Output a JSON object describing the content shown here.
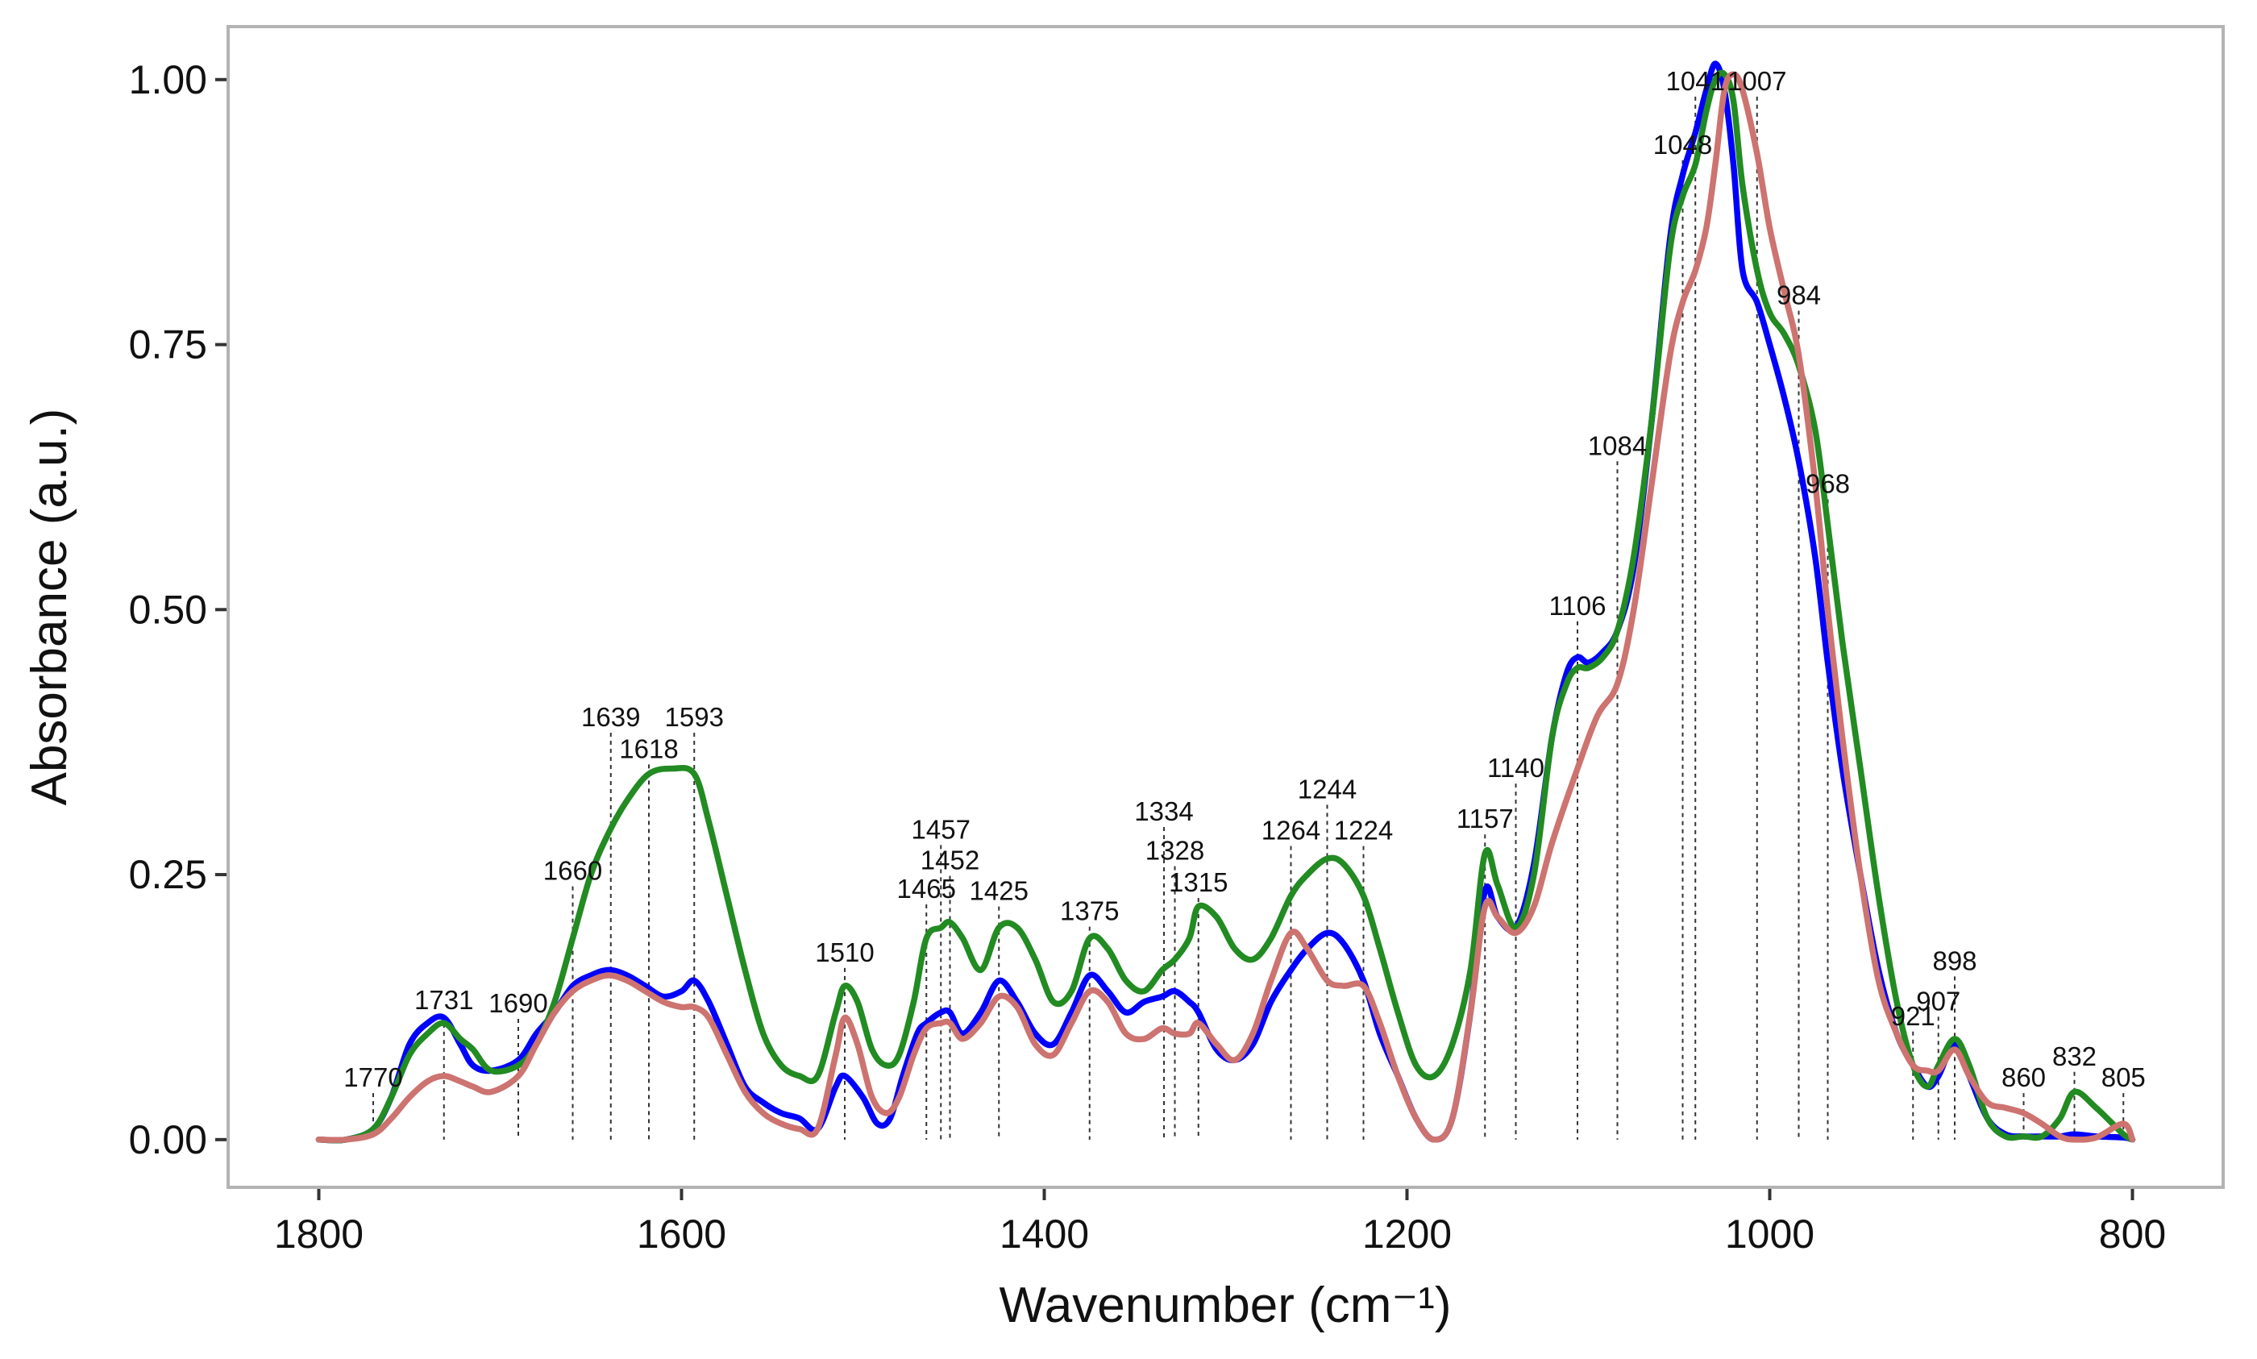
{
  "chart_data": {
    "type": "line",
    "xlabel": "Wavenumber (cm⁻¹)",
    "ylabel": "Absorbance (a.u.)",
    "xlim": [
      1850,
      750
    ],
    "ylim": [
      -0.045,
      1.05
    ],
    "x_reversed": true,
    "grid": false,
    "legend": "none",
    "x_ticks": [
      1800,
      1600,
      1400,
      1200,
      1000,
      800
    ],
    "x_tick_labels": [
      "1800",
      "1600",
      "1400",
      "1200",
      "1000",
      "800"
    ],
    "y_ticks": [
      0.0,
      0.25,
      0.5,
      0.75,
      1.0
    ],
    "y_tick_labels": [
      "0.00",
      "0.25",
      "0.50",
      "0.75",
      "1.00"
    ],
    "series": [
      {
        "color": "#0000ff",
        "x": [
          1800,
          1785,
          1770,
          1760,
          1750,
          1740,
          1731,
          1722,
          1715,
          1705,
          1690,
          1680,
          1670,
          1660,
          1650,
          1640,
          1630,
          1620,
          1610,
          1600,
          1593,
          1585,
          1575,
          1565,
          1555,
          1545,
          1535,
          1525,
          1515,
          1510,
          1500,
          1492,
          1485,
          1478,
          1470,
          1465,
          1457,
          1452,
          1445,
          1435,
          1425,
          1415,
          1405,
          1395,
          1385,
          1375,
          1365,
          1355,
          1345,
          1335,
          1328,
          1320,
          1315,
          1305,
          1295,
          1285,
          1275,
          1264,
          1255,
          1244,
          1235,
          1224,
          1215,
          1205,
          1195,
          1185,
          1175,
          1165,
          1157,
          1150,
          1140,
          1130,
          1120,
          1112,
          1106,
          1100,
          1092,
          1084,
          1075,
          1065,
          1055,
          1048,
          1041,
          1035,
          1030,
          1025,
          1020,
          1015,
          1007,
          1000,
          992,
          984,
          975,
          968,
          960,
          950,
          940,
          930,
          921,
          913,
          907,
          898,
          890,
          880,
          870,
          860,
          850,
          840,
          832,
          820,
          805,
          800
        ],
        "y": [
          0.0,
          0.0,
          0.01,
          0.04,
          0.09,
          0.11,
          0.115,
          0.09,
          0.07,
          0.065,
          0.075,
          0.1,
          0.12,
          0.145,
          0.155,
          0.16,
          0.155,
          0.145,
          0.135,
          0.14,
          0.15,
          0.13,
          0.09,
          0.05,
          0.035,
          0.025,
          0.02,
          0.01,
          0.05,
          0.06,
          0.04,
          0.015,
          0.02,
          0.06,
          0.1,
          0.11,
          0.12,
          0.12,
          0.1,
          0.12,
          0.15,
          0.13,
          0.1,
          0.09,
          0.12,
          0.155,
          0.14,
          0.12,
          0.13,
          0.135,
          0.14,
          0.13,
          0.12,
          0.085,
          0.075,
          0.09,
          0.13,
          0.16,
          0.18,
          0.195,
          0.185,
          0.15,
          0.1,
          0.06,
          0.02,
          0.0,
          0.02,
          0.12,
          0.235,
          0.21,
          0.2,
          0.26,
          0.38,
          0.44,
          0.455,
          0.45,
          0.46,
          0.48,
          0.54,
          0.68,
          0.85,
          0.91,
          0.95,
          0.99,
          1.015,
          0.99,
          0.92,
          0.82,
          0.79,
          0.75,
          0.7,
          0.64,
          0.55,
          0.45,
          0.35,
          0.25,
          0.16,
          0.1,
          0.07,
          0.05,
          0.06,
          0.09,
          0.06,
          0.02,
          0.005,
          0.003,
          0.003,
          0.003,
          0.005,
          0.003,
          0.002,
          0.0
        ]
      },
      {
        "color": "#228b22",
        "x": [
          1800,
          1785,
          1770,
          1760,
          1750,
          1740,
          1731,
          1722,
          1715,
          1705,
          1690,
          1680,
          1670,
          1660,
          1650,
          1640,
          1630,
          1618,
          1605,
          1593,
          1585,
          1575,
          1565,
          1555,
          1545,
          1535,
          1525,
          1515,
          1510,
          1503,
          1495,
          1487,
          1480,
          1472,
          1465,
          1457,
          1452,
          1445,
          1435,
          1425,
          1415,
          1405,
          1395,
          1385,
          1375,
          1365,
          1355,
          1345,
          1335,
          1328,
          1320,
          1315,
          1305,
          1295,
          1285,
          1275,
          1264,
          1255,
          1244,
          1235,
          1224,
          1215,
          1205,
          1195,
          1185,
          1175,
          1165,
          1157,
          1150,
          1140,
          1130,
          1120,
          1112,
          1106,
          1100,
          1092,
          1084,
          1075,
          1065,
          1055,
          1048,
          1041,
          1035,
          1030,
          1025,
          1020,
          1015,
          1007,
          1000,
          992,
          984,
          975,
          968,
          960,
          950,
          940,
          930,
          921,
          913,
          907,
          898,
          890,
          880,
          870,
          860,
          850,
          840,
          832,
          820,
          805,
          800
        ],
        "y": [
          0.0,
          0.0,
          0.01,
          0.04,
          0.08,
          0.1,
          0.11,
          0.095,
          0.085,
          0.065,
          0.07,
          0.09,
          0.13,
          0.19,
          0.25,
          0.29,
          0.32,
          0.345,
          0.35,
          0.345,
          0.3,
          0.23,
          0.16,
          0.1,
          0.07,
          0.06,
          0.06,
          0.12,
          0.145,
          0.13,
          0.085,
          0.07,
          0.08,
          0.13,
          0.19,
          0.2,
          0.205,
          0.19,
          0.16,
          0.2,
          0.2,
          0.17,
          0.13,
          0.14,
          0.19,
          0.18,
          0.15,
          0.14,
          0.16,
          0.17,
          0.19,
          0.22,
          0.21,
          0.18,
          0.17,
          0.19,
          0.23,
          0.25,
          0.265,
          0.26,
          0.23,
          0.18,
          0.12,
          0.07,
          0.06,
          0.09,
          0.16,
          0.27,
          0.24,
          0.2,
          0.25,
          0.38,
          0.43,
          0.445,
          0.445,
          0.455,
          0.48,
          0.55,
          0.68,
          0.84,
          0.89,
          0.92,
          0.97,
          1.0,
          1.005,
          0.98,
          0.9,
          0.82,
          0.78,
          0.76,
          0.73,
          0.67,
          0.58,
          0.47,
          0.35,
          0.23,
          0.13,
          0.07,
          0.05,
          0.07,
          0.095,
          0.07,
          0.02,
          0.003,
          0.003,
          0.003,
          0.02,
          0.045,
          0.03,
          0.005,
          0.0
        ]
      },
      {
        "color": "#cd7370",
        "x": [
          1800,
          1785,
          1770,
          1760,
          1750,
          1740,
          1731,
          1722,
          1715,
          1705,
          1690,
          1680,
          1670,
          1660,
          1650,
          1640,
          1630,
          1620,
          1610,
          1600,
          1593,
          1585,
          1575,
          1565,
          1555,
          1545,
          1535,
          1525,
          1515,
          1510,
          1503,
          1495,
          1487,
          1480,
          1472,
          1465,
          1457,
          1452,
          1445,
          1435,
          1425,
          1415,
          1405,
          1395,
          1385,
          1375,
          1365,
          1355,
          1345,
          1335,
          1328,
          1320,
          1315,
          1305,
          1295,
          1285,
          1275,
          1264,
          1255,
          1244,
          1235,
          1224,
          1215,
          1205,
          1195,
          1185,
          1175,
          1165,
          1157,
          1150,
          1140,
          1130,
          1120,
          1106,
          1095,
          1084,
          1075,
          1065,
          1055,
          1048,
          1041,
          1035,
          1030,
          1025,
          1020,
          1015,
          1007,
          1000,
          992,
          984,
          975,
          968,
          960,
          950,
          940,
          930,
          921,
          913,
          907,
          898,
          890,
          880,
          870,
          860,
          850,
          840,
          832,
          820,
          805,
          800
        ],
        "y": [
          0.0,
          0.0,
          0.005,
          0.02,
          0.04,
          0.055,
          0.06,
          0.055,
          0.05,
          0.045,
          0.06,
          0.09,
          0.12,
          0.14,
          0.15,
          0.155,
          0.15,
          0.14,
          0.13,
          0.125,
          0.125,
          0.115,
          0.08,
          0.045,
          0.025,
          0.015,
          0.01,
          0.01,
          0.08,
          0.115,
          0.09,
          0.04,
          0.025,
          0.04,
          0.08,
          0.105,
          0.11,
          0.11,
          0.095,
          0.11,
          0.135,
          0.125,
          0.09,
          0.08,
          0.11,
          0.14,
          0.13,
          0.1,
          0.095,
          0.105,
          0.1,
          0.1,
          0.11,
          0.09,
          0.075,
          0.1,
          0.15,
          0.195,
          0.18,
          0.15,
          0.145,
          0.145,
          0.11,
          0.06,
          0.02,
          0.0,
          0.02,
          0.12,
          0.22,
          0.21,
          0.195,
          0.22,
          0.28,
          0.35,
          0.4,
          0.43,
          0.5,
          0.62,
          0.74,
          0.79,
          0.82,
          0.86,
          0.92,
          0.99,
          1.005,
          0.99,
          0.93,
          0.86,
          0.8,
          0.74,
          0.62,
          0.5,
          0.38,
          0.25,
          0.15,
          0.1,
          0.07,
          0.065,
          0.065,
          0.085,
          0.06,
          0.035,
          0.03,
          0.025,
          0.015,
          0.003,
          0.0,
          0.002,
          0.015,
          0.0
        ]
      }
    ],
    "peak_labels": [
      {
        "x": 1770,
        "label": "1770",
        "y": 0.05
      },
      {
        "x": 1731,
        "label": "1731",
        "y": 0.123
      },
      {
        "x": 1690,
        "label": "1690",
        "y": 0.12
      },
      {
        "x": 1660,
        "label": "1660",
        "y": 0.245
      },
      {
        "x": 1639,
        "label": "1639",
        "y": 0.39
      },
      {
        "x": 1618,
        "label": "1618",
        "y": 0.36
      },
      {
        "x": 1593,
        "label": "1593",
        "y": 0.39
      },
      {
        "x": 1510,
        "label": "1510",
        "y": 0.168
      },
      {
        "x": 1465,
        "label": "1465",
        "y": 0.228
      },
      {
        "x": 1457,
        "label": "1457",
        "y": 0.284
      },
      {
        "x": 1452,
        "label": "1452",
        "y": 0.255
      },
      {
        "x": 1425,
        "label": "1425",
        "y": 0.226
      },
      {
        "x": 1375,
        "label": "1375",
        "y": 0.207
      },
      {
        "x": 1334,
        "label": "1334",
        "y": 0.301
      },
      {
        "x": 1328,
        "label": "1328",
        "y": 0.264
      },
      {
        "x": 1315,
        "label": "1315",
        "y": 0.234
      },
      {
        "x": 1264,
        "label": "1264",
        "y": 0.283
      },
      {
        "x": 1244,
        "label": "1244",
        "y": 0.322
      },
      {
        "x": 1224,
        "label": "1224",
        "y": 0.283
      },
      {
        "x": 1157,
        "label": "1157",
        "y": 0.294
      },
      {
        "x": 1140,
        "label": "1140",
        "y": 0.342
      },
      {
        "x": 1106,
        "label": "1106",
        "y": 0.495
      },
      {
        "x": 1084,
        "label": "1084",
        "y": 0.646
      },
      {
        "x": 1048,
        "label": "1048",
        "y": 0.93
      },
      {
        "x": 1041,
        "label": "1041",
        "y": 0.99
      },
      {
        "x": 1007,
        "label": "1007",
        "y": 0.99
      },
      {
        "x": 984,
        "label": "984",
        "y": 0.788
      },
      {
        "x": 968,
        "label": "968",
        "y": 0.61
      },
      {
        "x": 921,
        "label": "921",
        "y": 0.108
      },
      {
        "x": 907,
        "label": "907",
        "y": 0.122
      },
      {
        "x": 898,
        "label": "898",
        "y": 0.16
      },
      {
        "x": 860,
        "label": "860",
        "y": 0.05
      },
      {
        "x": 832,
        "label": "832",
        "y": 0.07
      },
      {
        "x": 805,
        "label": "805",
        "y": 0.05
      }
    ]
  }
}
